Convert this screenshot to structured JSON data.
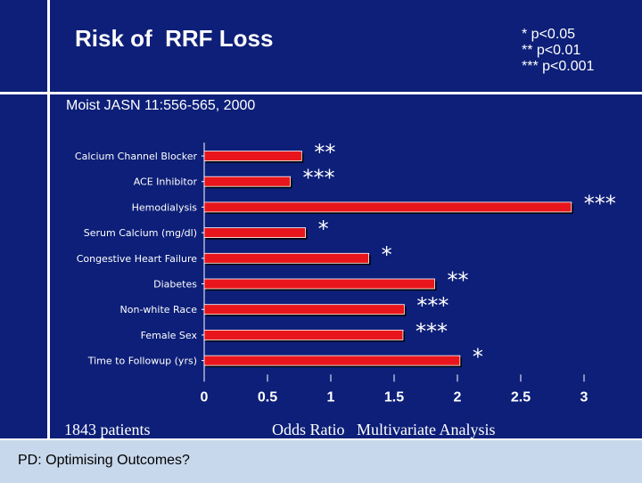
{
  "slide": {
    "title": "Risk of  RRF Loss",
    "significance_notes": [
      "* p<0.05",
      "** p<0.01",
      "*** p<0.001"
    ],
    "subtitle": "Moist JASN 11:556-565, 2000",
    "patients_note": "1843 patients",
    "footer": "PD: Optimising Outcomes?",
    "colors": {
      "background": "#0d1f78",
      "bar": "#e8161c",
      "footer_bg": "#c8d8ec"
    }
  },
  "chart_data": {
    "type": "bar",
    "orientation": "horizontal",
    "xlabel": "Odds Ratio   Multivariate Analysis",
    "xlim": [
      0,
      3
    ],
    "xticks": [
      "0",
      "0.5",
      "1",
      "1.5",
      "2",
      "2.5",
      "3"
    ],
    "categories": [
      "Calcium Channel Blocker",
      "ACE Inhibitor",
      "Hemodialysis",
      "Serum Calcium (mg/dl)",
      "Congestive Heart Failure",
      "Diabetes",
      "Non-white Race",
      "Female Sex",
      "Time to Followup (yrs)"
    ],
    "values": [
      0.77,
      0.68,
      2.9,
      0.8,
      1.3,
      1.82,
      1.58,
      1.57,
      2.02
    ],
    "significance": [
      "**",
      "***",
      "***",
      "*",
      "*",
      "**",
      "***",
      "***",
      "*"
    ]
  }
}
